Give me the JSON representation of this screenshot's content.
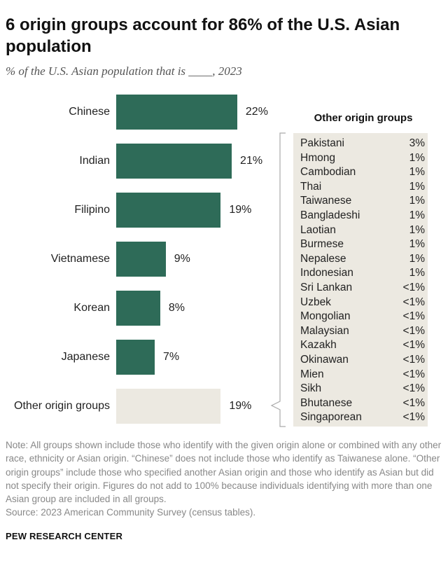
{
  "title": "6 origin groups account for 86% of the U.S. Asian population",
  "subtitle": "% of the U.S. Asian population that is ____, 2023",
  "colors": {
    "bar": "#2e6b58",
    "other_bar": "#ece9e1",
    "panel": "#ece9e1"
  },
  "chart_data": {
    "type": "bar",
    "orientation": "horizontal",
    "categories": [
      "Chinese",
      "Indian",
      "Filipino",
      "Vietnamese",
      "Korean",
      "Japanese",
      "Other origin groups"
    ],
    "values": [
      22,
      21,
      19,
      9,
      8,
      7,
      19
    ],
    "value_labels": [
      "22%",
      "21%",
      "19%",
      "9%",
      "8%",
      "7%",
      "19%"
    ],
    "grid": false,
    "legend": "none"
  },
  "other_groups": {
    "title": "Other origin groups",
    "rows": [
      {
        "name": "Pakistani",
        "pct": "3%"
      },
      {
        "name": "Hmong",
        "pct": "1%"
      },
      {
        "name": "Cambodian",
        "pct": "1%"
      },
      {
        "name": "Thai",
        "pct": "1%"
      },
      {
        "name": "Taiwanese",
        "pct": "1%"
      },
      {
        "name": "Bangladeshi",
        "pct": "1%"
      },
      {
        "name": "Laotian",
        "pct": "1%"
      },
      {
        "name": "Burmese",
        "pct": "1%"
      },
      {
        "name": "Nepalese",
        "pct": "1%"
      },
      {
        "name": "Indonesian",
        "pct": "1%"
      },
      {
        "name": "Sri Lankan",
        "pct": "<1%"
      },
      {
        "name": "Uzbek",
        "pct": "<1%"
      },
      {
        "name": "Mongolian",
        "pct": "<1%"
      },
      {
        "name": "Malaysian",
        "pct": "<1%"
      },
      {
        "name": "Kazakh",
        "pct": "<1%"
      },
      {
        "name": "Okinawan",
        "pct": "<1%"
      },
      {
        "name": "Mien",
        "pct": "<1%"
      },
      {
        "name": "Sikh",
        "pct": "<1%"
      },
      {
        "name": "Bhutanese",
        "pct": "<1%"
      },
      {
        "name": "Singaporean",
        "pct": "<1%"
      }
    ]
  },
  "note": "Note: All groups shown include those who identify with the given origin alone or combined with any other race, ethnicity or Asian origin. “Chinese” does not include those who identify as Taiwanese alone. “Other origin groups” include those who specified another Asian origin and those who identify as Asian but did not specify their origin. Figures do not add to 100% because individuals identifying with more than one Asian group are included in all groups.",
  "source": "Source: 2023 American Community Survey (census tables).",
  "footer": "PEW RESEARCH CENTER"
}
